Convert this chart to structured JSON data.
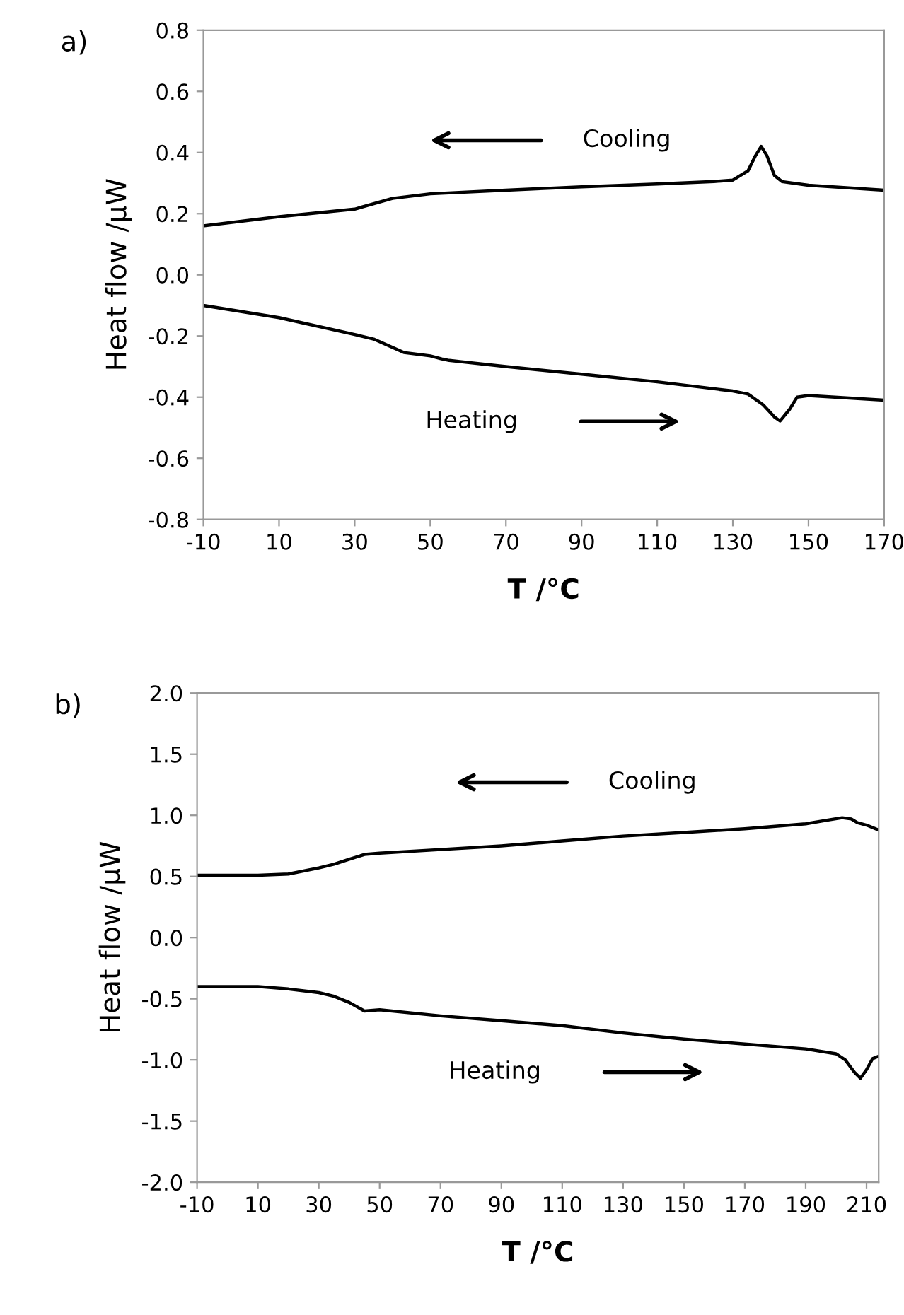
{
  "chart_data": [
    {
      "type": "line",
      "title": "a)",
      "xlabel": "T /°C",
      "ylabel": "Heat flow /μW",
      "xlim": [
        -10,
        170
      ],
      "xticks": [
        -10,
        10,
        30,
        50,
        70,
        90,
        110,
        130,
        150,
        170
      ],
      "ylim": [
        -0.8,
        0.8
      ],
      "yticks": [
        {
          "value": -0.8,
          "label": "-0.8"
        },
        {
          "value": -0.6,
          "label": "-0.6"
        },
        {
          "value": -0.4,
          "label": "-0.4"
        },
        {
          "value": -0.2,
          "label": "-0.2"
        },
        {
          "value": 0,
          "label": "0.0"
        },
        {
          "value": 0.2,
          "label": "0.2"
        },
        {
          "value": 0.4,
          "label": "0.4"
        },
        {
          "value": 0.6,
          "label": "0.6"
        },
        {
          "value": 0.8,
          "label": "0.8"
        }
      ],
      "grid": false,
      "legend": false,
      "series": [
        {
          "color": "#000000",
          "x": [
            -10,
            10,
            30,
            40,
            50,
            70,
            90,
            110,
            125,
            130,
            134,
            136,
            137.5,
            139,
            141,
            143,
            150,
            170
          ],
          "values": [
            0.16,
            0.19,
            0.215,
            0.25,
            0.265,
            0.277,
            0.288,
            0.297,
            0.305,
            0.31,
            0.34,
            0.39,
            0.42,
            0.39,
            0.325,
            0.305,
            0.293,
            0.277
          ]
        },
        {
          "color": "#000000",
          "x": [
            -10,
            10,
            30,
            35,
            43,
            50,
            53,
            55,
            70,
            90,
            110,
            130,
            134,
            138,
            141,
            142.5,
            145,
            147,
            150,
            170
          ],
          "values": [
            -0.1,
            -0.14,
            -0.195,
            -0.21,
            -0.254,
            -0.265,
            -0.275,
            -0.28,
            -0.3,
            -0.325,
            -0.35,
            -0.38,
            -0.39,
            -0.425,
            -0.465,
            -0.478,
            -0.44,
            -0.4,
            -0.395,
            -0.41
          ]
        }
      ],
      "annotations": [
        "Cooling",
        "Heating"
      ]
    },
    {
      "type": "line",
      "title": "b)",
      "xlabel": "T /°C",
      "ylabel": "Heat flow /μW",
      "xlim": [
        -10,
        214
      ],
      "xticks": [
        -10,
        10,
        30,
        50,
        70,
        90,
        110,
        130,
        150,
        170,
        190,
        210
      ],
      "ylim": [
        -2.0,
        2.0
      ],
      "yticks": [
        {
          "value": -2.0,
          "label": "-2.0"
        },
        {
          "value": -1.5,
          "label": "-1.5"
        },
        {
          "value": -1.0,
          "label": "-1.0"
        },
        {
          "value": -0.5,
          "label": "-0.5"
        },
        {
          "value": 0,
          "label": "0.0"
        },
        {
          "value": 0.5,
          "label": "0.5"
        },
        {
          "value": 1.0,
          "label": "1.0"
        },
        {
          "value": 1.5,
          "label": "1.5"
        },
        {
          "value": 2.0,
          "label": "2.0"
        }
      ],
      "grid": false,
      "legend": false,
      "series": [
        {
          "color": "#000000",
          "x": [
            -10,
            10,
            20,
            30,
            35,
            40,
            45,
            50,
            70,
            90,
            110,
            130,
            150,
            170,
            180,
            190,
            197,
            202,
            205,
            207,
            210,
            214
          ],
          "values": [
            0.51,
            0.51,
            0.52,
            0.57,
            0.6,
            0.64,
            0.68,
            0.69,
            0.72,
            0.75,
            0.79,
            0.83,
            0.86,
            0.89,
            0.91,
            0.93,
            0.96,
            0.98,
            0.97,
            0.94,
            0.92,
            0.88
          ]
        },
        {
          "color": "#000000",
          "x": [
            -10,
            10,
            20,
            30,
            35,
            40,
            45,
            50,
            70,
            90,
            110,
            130,
            150,
            170,
            190,
            200,
            203,
            206,
            208,
            210,
            212,
            214
          ],
          "values": [
            -0.4,
            -0.4,
            -0.42,
            -0.45,
            -0.48,
            -0.53,
            -0.6,
            -0.59,
            -0.64,
            -0.68,
            -0.72,
            -0.78,
            -0.83,
            -0.87,
            -0.91,
            -0.95,
            -1.0,
            -1.1,
            -1.15,
            -1.08,
            -0.99,
            -0.97
          ]
        }
      ],
      "annotations": [
        "Cooling",
        "Heating"
      ]
    }
  ]
}
